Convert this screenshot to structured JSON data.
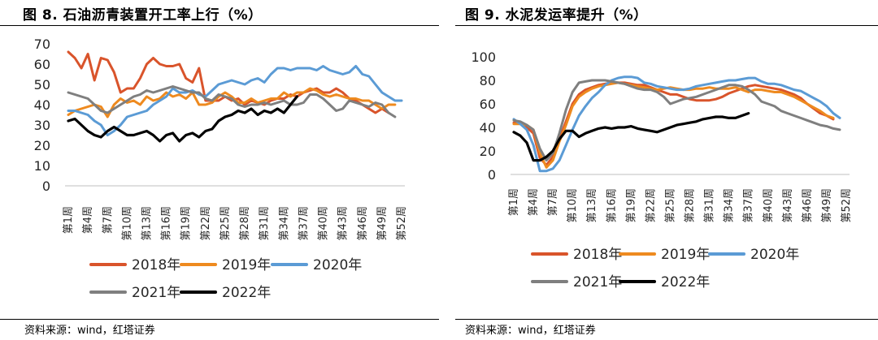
{
  "source_text": "资料来源：wind，红塔证券",
  "chart_data": [
    {
      "type": "line",
      "title": "图 8. 石油沥青装置开工率上行（%）",
      "xlabel": "",
      "ylabel": "",
      "ylim": [
        0,
        70
      ],
      "yticks": [
        0,
        10,
        20,
        30,
        40,
        50,
        60,
        70
      ],
      "x_count": 52,
      "xtick_labels": [
        "第1周",
        "第4周",
        "第7周",
        "第10周",
        "第13周",
        "第16周",
        "第19周",
        "第22周",
        "第25周",
        "第28周",
        "第31周",
        "第34周",
        "第37周",
        "第40周",
        "第43周",
        "第46周",
        "第49周",
        "第52周"
      ],
      "series": [
        {
          "name": "2018年",
          "color": "#D9542B",
          "values": [
            66,
            63,
            58,
            65,
            52,
            63,
            62,
            56,
            46,
            48,
            48,
            53,
            60,
            63,
            60,
            59,
            59,
            60,
            53,
            51,
            58,
            42,
            42,
            42,
            44,
            42,
            43,
            40,
            42,
            41,
            40,
            42,
            43,
            43,
            45,
            44,
            46,
            47,
            48,
            46,
            46,
            48,
            46,
            43,
            42,
            40,
            38,
            36,
            38,
            36,
            null,
            null
          ]
        },
        {
          "name": "2019年",
          "color": "#EE8A1F",
          "values": [
            35,
            37,
            38,
            39,
            40,
            39,
            34,
            40,
            43,
            41,
            42,
            40,
            44,
            42,
            43,
            46,
            44,
            45,
            43,
            46,
            40,
            40,
            41,
            44,
            46,
            44,
            41,
            41,
            43,
            41,
            42,
            43,
            43,
            46,
            44,
            46,
            46,
            48,
            47,
            45,
            44,
            45,
            44,
            43,
            43,
            42,
            42,
            40,
            38,
            40,
            40,
            null
          ]
        },
        {
          "name": "2020年",
          "color": "#5B9BD5",
          "values": [
            37,
            37,
            36,
            35,
            32,
            30,
            25,
            27,
            30,
            34,
            35,
            36,
            37,
            40,
            42,
            44,
            48,
            46,
            46,
            47,
            45,
            44,
            47,
            50,
            51,
            52,
            51,
            50,
            52,
            53,
            51,
            55,
            58,
            58,
            57,
            58,
            58,
            58,
            57,
            59,
            57,
            56,
            55,
            56,
            59,
            55,
            54,
            50,
            46,
            44,
            42,
            42
          ]
        },
        {
          "name": "2021年",
          "color": "#7F7F7F",
          "values": [
            46,
            45,
            44,
            43,
            40,
            37,
            36,
            38,
            40,
            42,
            44,
            45,
            47,
            46,
            47,
            48,
            49,
            48,
            47,
            46,
            46,
            43,
            42,
            45,
            44,
            43,
            40,
            39,
            40,
            40,
            41,
            40,
            41,
            42,
            40,
            40,
            41,
            45,
            45,
            43,
            40,
            37,
            38,
            42,
            41,
            40,
            39,
            41,
            40,
            36,
            34,
            null
          ]
        },
        {
          "name": "2022年",
          "color": "#000000",
          "values": [
            32,
            33,
            30,
            27,
            25,
            24,
            27,
            29,
            27,
            25,
            25,
            26,
            27,
            25,
            22,
            25,
            26,
            22,
            25,
            26,
            24,
            27,
            28,
            32,
            34,
            35,
            37,
            36,
            38,
            35,
            37,
            36,
            38,
            36,
            40,
            44,
            null,
            null,
            null,
            null,
            null,
            null,
            null,
            null,
            null,
            null,
            null,
            null,
            null,
            null,
            null,
            null
          ]
        }
      ],
      "legend": {
        "placement": "bottom",
        "entries": [
          "2018年",
          "2019年",
          "2020年",
          "2021年",
          "2022年"
        ]
      }
    },
    {
      "type": "line",
      "title": "图 9. 水泥发运率提升（%）",
      "xlabel": "",
      "ylabel": "",
      "ylim": [
        0,
        100
      ],
      "yticks": [
        0,
        20,
        40,
        60,
        80,
        100
      ],
      "x_count": 52,
      "xtick_labels": [
        "第1周",
        "第4周",
        "第7周",
        "第10周",
        "第13周",
        "第16周",
        "第19周",
        "第22周",
        "第25周",
        "第28周",
        "第31周",
        "第34周",
        "第37周",
        "第40周",
        "第43周",
        "第46周",
        "第49周",
        "第52周"
      ],
      "series": [
        {
          "name": "2018年",
          "color": "#D9542B",
          "values": [
            44,
            44,
            40,
            35,
            14,
            8,
            15,
            30,
            45,
            60,
            68,
            72,
            74,
            76,
            77,
            78,
            78,
            78,
            77,
            76,
            76,
            74,
            72,
            70,
            68,
            68,
            66,
            64,
            63,
            63,
            63,
            64,
            66,
            69,
            71,
            73,
            75,
            76,
            75,
            74,
            73,
            72,
            70,
            68,
            65,
            60,
            56,
            52,
            50,
            47,
            null,
            null
          ]
        },
        {
          "name": "2019年",
          "color": "#EE8A1F",
          "values": [
            43,
            43,
            42,
            38,
            18,
            6,
            12,
            28,
            42,
            58,
            66,
            70,
            73,
            75,
            76,
            77,
            78,
            77,
            76,
            75,
            74,
            73,
            72,
            73,
            74,
            73,
            72,
            72,
            73,
            73,
            74,
            73,
            73,
            73,
            74,
            72,
            70,
            72,
            72,
            71,
            70,
            70,
            68,
            66,
            63,
            60,
            57,
            54,
            50,
            48,
            null,
            null
          ]
        },
        {
          "name": "2020年",
          "color": "#5B9BD5",
          "values": [
            47,
            43,
            38,
            25,
            3,
            3,
            5,
            12,
            25,
            38,
            50,
            58,
            65,
            70,
            76,
            80,
            82,
            83,
            83,
            82,
            78,
            77,
            75,
            74,
            73,
            72,
            72,
            73,
            75,
            76,
            77,
            78,
            79,
            80,
            80,
            81,
            82,
            82,
            79,
            77,
            77,
            76,
            74,
            72,
            71,
            68,
            65,
            62,
            58,
            52,
            48,
            null
          ]
        },
        {
          "name": "2021年",
          "color": "#7F7F7F",
          "values": [
            46,
            45,
            42,
            38,
            22,
            12,
            18,
            35,
            55,
            70,
            78,
            79,
            80,
            80,
            80,
            79,
            78,
            77,
            75,
            73,
            72,
            72,
            70,
            66,
            60,
            62,
            64,
            65,
            66,
            68,
            70,
            72,
            74,
            76,
            76,
            75,
            72,
            68,
            62,
            60,
            58,
            54,
            52,
            50,
            48,
            46,
            44,
            42,
            41,
            39,
            38,
            null
          ]
        },
        {
          "name": "2022年",
          "color": "#000000",
          "values": [
            36,
            33,
            27,
            12,
            12,
            15,
            20,
            30,
            37,
            37,
            32,
            35,
            37,
            39,
            40,
            39,
            40,
            40,
            41,
            39,
            38,
            37,
            36,
            38,
            40,
            42,
            43,
            44,
            45,
            47,
            48,
            49,
            49,
            48,
            48,
            50,
            52,
            null,
            null,
            null,
            null,
            null,
            null,
            null,
            null,
            null,
            null,
            null,
            null,
            null,
            null,
            null
          ]
        }
      ],
      "legend": {
        "placement": "bottom",
        "entries": [
          "2018年",
          "2019年",
          "2020年",
          "2021年",
          "2022年"
        ]
      }
    }
  ]
}
